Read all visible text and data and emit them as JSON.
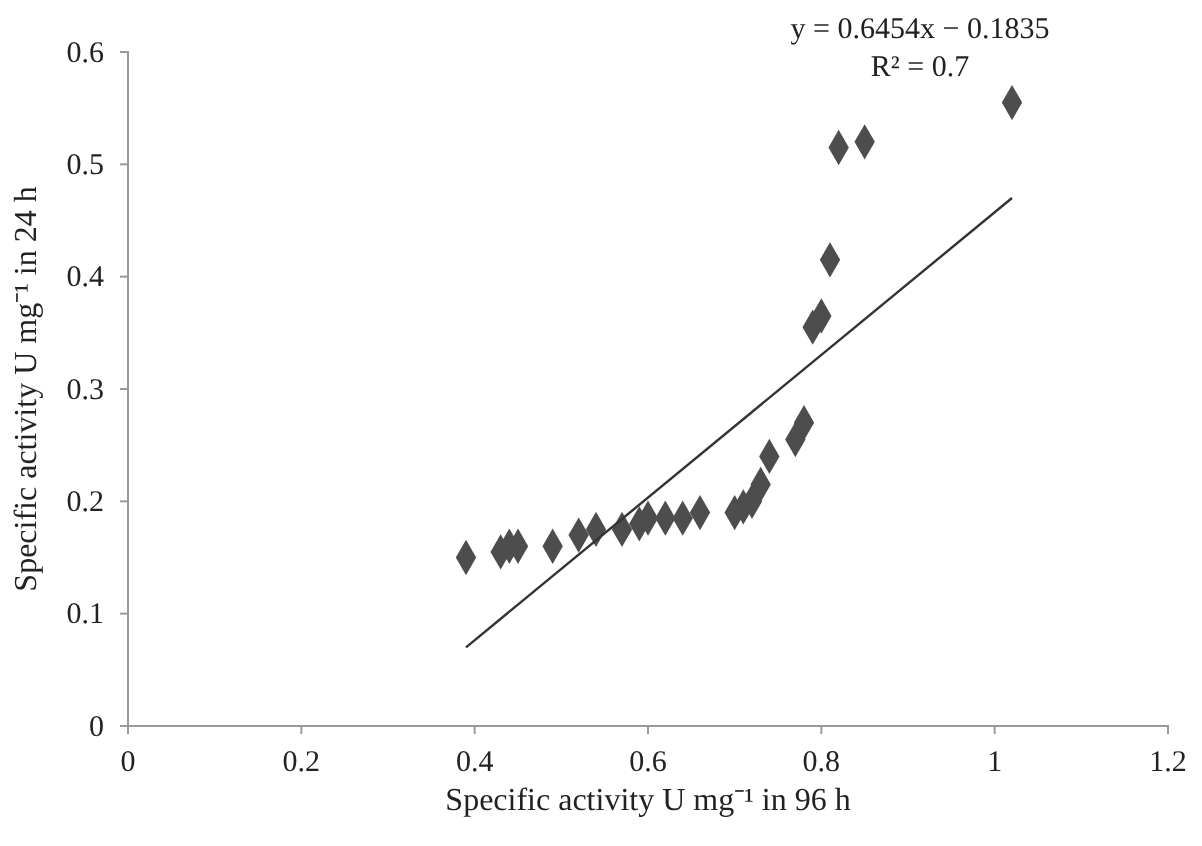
{
  "chart_data": {
    "type": "scatter",
    "xlabel": "Specific activity U mg⁻¹ in 96 h",
    "ylabel": "Specific activity U mg⁻¹ in 24 h",
    "xlim": [
      0,
      1.2
    ],
    "xticks": [
      0,
      0.2,
      0.4,
      0.6,
      0.8,
      1,
      1.2
    ],
    "ylim": [
      0,
      0.6
    ],
    "yticks": [
      0,
      0.1,
      0.2,
      0.3,
      0.4,
      0.5,
      0.6
    ],
    "grid": false,
    "series": [
      {
        "marker": "diamond",
        "color": "#4d4d4d",
        "x": [
          0.39,
          0.43,
          0.44,
          0.45,
          0.49,
          0.52,
          0.54,
          0.57,
          0.59,
          0.6,
          0.62,
          0.64,
          0.66,
          0.7,
          0.71,
          0.72,
          0.73,
          0.74,
          0.77,
          0.78,
          0.79,
          0.8,
          0.81,
          0.82,
          0.85,
          1.02
        ],
        "values": [
          0.15,
          0.155,
          0.16,
          0.16,
          0.16,
          0.17,
          0.175,
          0.175,
          0.18,
          0.185,
          0.185,
          0.185,
          0.19,
          0.19,
          0.195,
          0.2,
          0.215,
          0.24,
          0.255,
          0.27,
          0.355,
          0.365,
          0.415,
          0.515,
          0.52,
          0.555
        ]
      },
      {
        "type": "line",
        "color": "#333333",
        "line_style": "solid",
        "x": [
          0.39,
          1.02
        ],
        "values": [
          0.07,
          0.47
        ]
      }
    ],
    "annotations": [
      "y = 0.6454x − 0.1835",
      "R² = 0.7"
    ]
  }
}
